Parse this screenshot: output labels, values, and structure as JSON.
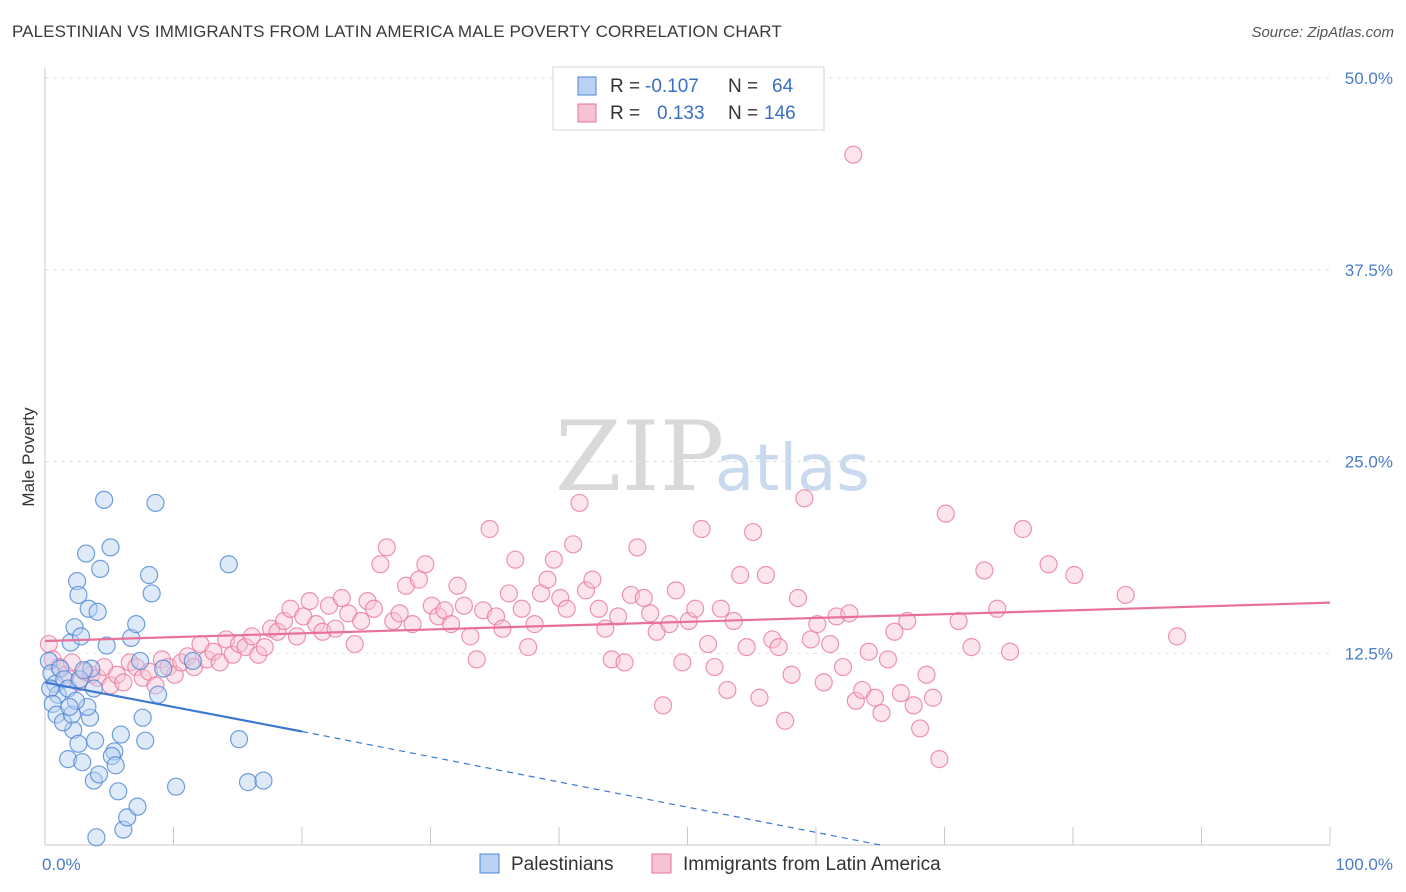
{
  "title": "PALESTINIAN VS IMMIGRANTS FROM LATIN AMERICA MALE POVERTY CORRELATION CHART",
  "source": "Source: ZipAtlas.com",
  "watermark": {
    "zip": "ZIP",
    "atlas": "atlas"
  },
  "colors": {
    "blue": "#4f86d4",
    "blue_fill": "#b9d1f2",
    "pink": "#e8719b",
    "pink_fill": "#f6c3d5",
    "tick": "#4a7cc8",
    "grid": "#e2e2e2"
  },
  "legend": {
    "rows": [
      {
        "r_label": "R =",
        "r_value": "-0.107",
        "n_label": "N =",
        "n_value": "64"
      },
      {
        "r_label": "R =",
        "r_value": "0.133",
        "n_label": "N =",
        "n_value": "146"
      }
    ]
  },
  "chart_data": {
    "type": "scatter",
    "xlabel": "",
    "ylabel": "Male Poverty",
    "xlim": [
      0,
      100
    ],
    "ylim": [
      0,
      50
    ],
    "x_tick_labels": [
      "0.0%",
      "100.0%"
    ],
    "y_ticks": [
      12.5,
      25.0,
      37.5,
      50.0
    ],
    "y_tick_labels": [
      "12.5%",
      "25.0%",
      "37.5%",
      "50.0%"
    ],
    "grid": true,
    "legend_position": "bottom-center",
    "series": [
      {
        "name": "Palestinians",
        "color": "#4f86d4",
        "trend": {
          "x": [
            0,
            20
          ],
          "y": [
            10.6,
            7.4
          ],
          "dashed_to": [
            65,
            0
          ]
        },
        "points": [
          [
            0.3,
            12
          ],
          [
            0.5,
            11.2
          ],
          [
            0.8,
            10.5
          ],
          [
            1,
            9.8
          ],
          [
            0.4,
            10.2
          ],
          [
            1.2,
            11.5
          ],
          [
            0.6,
            9.2
          ],
          [
            1.5,
            10.8
          ],
          [
            0.9,
            8.5
          ],
          [
            1.8,
            10.2
          ],
          [
            2,
            13.2
          ],
          [
            2.3,
            14.2
          ],
          [
            2.5,
            17.2
          ],
          [
            2.6,
            16.3
          ],
          [
            2.8,
            13.6
          ],
          [
            3.2,
            19
          ],
          [
            3.4,
            15.4
          ],
          [
            3.6,
            11.5
          ],
          [
            3.8,
            10.2
          ],
          [
            3.5,
            8.3
          ],
          [
            3.9,
            6.8
          ],
          [
            4.1,
            15.2
          ],
          [
            4.3,
            18
          ],
          [
            4.6,
            22.5
          ],
          [
            3.8,
            4.2
          ],
          [
            4.2,
            4.6
          ],
          [
            4.8,
            13
          ],
          [
            5.1,
            19.4
          ],
          [
            5.4,
            6.1
          ],
          [
            5.7,
            3.5
          ],
          [
            6.1,
            1
          ],
          [
            6.4,
            1.8
          ],
          [
            5.9,
            7.2
          ],
          [
            5.2,
            5.8
          ],
          [
            5.5,
            5.2
          ],
          [
            2.2,
            7.5
          ],
          [
            2.6,
            6.6
          ],
          [
            1.8,
            5.6
          ],
          [
            1.4,
            8
          ],
          [
            2.1,
            8.5
          ],
          [
            2.9,
            5.4
          ],
          [
            3.3,
            9.0
          ],
          [
            2.7,
            10.8
          ],
          [
            3,
            11.4
          ],
          [
            2.4,
            9.4
          ],
          [
            1.9,
            9.0
          ],
          [
            6.7,
            13.5
          ],
          [
            7.1,
            14.4
          ],
          [
            7.4,
            12
          ],
          [
            7.6,
            8.3
          ],
          [
            7.8,
            6.8
          ],
          [
            8.1,
            17.6
          ],
          [
            8.3,
            16.4
          ],
          [
            8.6,
            22.3
          ],
          [
            8.8,
            9.8
          ],
          [
            9.2,
            11.5
          ],
          [
            10.2,
            3.8
          ],
          [
            11.5,
            12
          ],
          [
            14.3,
            18.3
          ],
          [
            15.1,
            6.9
          ],
          [
            15.8,
            4.1
          ],
          [
            17.0,
            4.2
          ],
          [
            7.2,
            2.5
          ],
          [
            4.0,
            0.5
          ]
        ]
      },
      {
        "name": "Immigrants from Latin America",
        "color": "#e8719b",
        "trend": {
          "x": [
            0,
            100
          ],
          "y": [
            13.3,
            15.8
          ]
        },
        "points": [
          [
            0.3,
            13.1
          ],
          [
            0.6,
            12.1
          ],
          [
            1.1,
            11.6
          ],
          [
            1.6,
            11.1
          ],
          [
            2.1,
            11.9
          ],
          [
            2.6,
            10.6
          ],
          [
            3.1,
            11.3
          ],
          [
            3.6,
            11.1
          ],
          [
            4.1,
            10.9
          ],
          [
            4.6,
            11.6
          ],
          [
            5.1,
            10.4
          ],
          [
            5.6,
            11.1
          ],
          [
            6.1,
            10.6
          ],
          [
            6.6,
            11.9
          ],
          [
            7.1,
            11.6
          ],
          [
            7.6,
            10.9
          ],
          [
            8.1,
            11.3
          ],
          [
            8.6,
            10.4
          ],
          [
            9.1,
            12.1
          ],
          [
            9.6,
            11.6
          ],
          [
            10.1,
            11.1
          ],
          [
            10.6,
            11.9
          ],
          [
            11.1,
            12.3
          ],
          [
            11.6,
            11.6
          ],
          [
            12.1,
            13.1
          ],
          [
            12.6,
            12.1
          ],
          [
            13.1,
            12.6
          ],
          [
            13.6,
            11.9
          ],
          [
            14.1,
            13.4
          ],
          [
            14.6,
            12.4
          ],
          [
            15.1,
            13.1
          ],
          [
            15.6,
            12.9
          ],
          [
            16.1,
            13.6
          ],
          [
            16.6,
            12.4
          ],
          [
            17.1,
            12.9
          ],
          [
            17.6,
            14.1
          ],
          [
            18.1,
            13.9
          ],
          [
            18.6,
            14.6
          ],
          [
            19.1,
            15.4
          ],
          [
            19.6,
            13.6
          ],
          [
            20.1,
            14.9
          ],
          [
            20.6,
            15.9
          ],
          [
            21.1,
            14.4
          ],
          [
            21.6,
            13.9
          ],
          [
            22.1,
            15.6
          ],
          [
            22.6,
            14.1
          ],
          [
            23.1,
            16.1
          ],
          [
            23.6,
            15.1
          ],
          [
            24.1,
            13.1
          ],
          [
            24.6,
            14.6
          ],
          [
            25.1,
            15.9
          ],
          [
            25.6,
            15.4
          ],
          [
            26.1,
            18.3
          ],
          [
            26.6,
            19.4
          ],
          [
            27.1,
            14.6
          ],
          [
            27.6,
            15.1
          ],
          [
            28.1,
            16.9
          ],
          [
            28.6,
            14.4
          ],
          [
            29.1,
            17.3
          ],
          [
            29.6,
            18.3
          ],
          [
            30.1,
            15.6
          ],
          [
            30.6,
            14.9
          ],
          [
            31.1,
            15.3
          ],
          [
            31.6,
            14.4
          ],
          [
            32.1,
            16.9
          ],
          [
            32.6,
            15.6
          ],
          [
            33.1,
            13.6
          ],
          [
            33.6,
            12.1
          ],
          [
            34.1,
            15.3
          ],
          [
            34.6,
            20.6
          ],
          [
            35.1,
            14.9
          ],
          [
            35.6,
            14.1
          ],
          [
            36.1,
            16.4
          ],
          [
            36.6,
            18.6
          ],
          [
            37.1,
            15.4
          ],
          [
            37.6,
            12.9
          ],
          [
            38.1,
            14.4
          ],
          [
            38.6,
            16.4
          ],
          [
            39.1,
            17.3
          ],
          [
            39.6,
            18.6
          ],
          [
            40.1,
            16.1
          ],
          [
            40.6,
            15.4
          ],
          [
            41.1,
            19.6
          ],
          [
            41.6,
            22.3
          ],
          [
            42.1,
            16.6
          ],
          [
            42.6,
            17.3
          ],
          [
            43.1,
            15.4
          ],
          [
            43.6,
            14.1
          ],
          [
            44.1,
            12.1
          ],
          [
            44.6,
            14.9
          ],
          [
            45.1,
            11.9
          ],
          [
            45.6,
            16.3
          ],
          [
            46.1,
            19.4
          ],
          [
            46.6,
            16.1
          ],
          [
            47.1,
            15.1
          ],
          [
            47.6,
            13.9
          ],
          [
            48.1,
            9.1
          ],
          [
            48.6,
            14.4
          ],
          [
            49.1,
            16.6
          ],
          [
            49.6,
            11.9
          ],
          [
            50.1,
            14.6
          ],
          [
            50.6,
            15.4
          ],
          [
            51.1,
            20.6
          ],
          [
            51.6,
            13.1
          ],
          [
            52.1,
            11.6
          ],
          [
            52.6,
            15.4
          ],
          [
            53.1,
            10.1
          ],
          [
            53.6,
            14.6
          ],
          [
            54.1,
            17.6
          ],
          [
            54.6,
            12.9
          ],
          [
            55.1,
            20.4
          ],
          [
            55.6,
            9.6
          ],
          [
            56.1,
            17.6
          ],
          [
            56.6,
            13.4
          ],
          [
            57.1,
            12.9
          ],
          [
            57.6,
            8.1
          ],
          [
            58.1,
            11.1
          ],
          [
            58.6,
            16.1
          ],
          [
            59.1,
            22.6
          ],
          [
            59.6,
            13.4
          ],
          [
            60.1,
            14.4
          ],
          [
            60.6,
            10.6
          ],
          [
            61.1,
            13.1
          ],
          [
            61.6,
            14.9
          ],
          [
            62.1,
            11.6
          ],
          [
            62.6,
            15.1
          ],
          [
            63.1,
            9.4
          ],
          [
            63.6,
            10.1
          ],
          [
            64.1,
            12.6
          ],
          [
            64.6,
            9.6
          ],
          [
            65.1,
            8.6
          ],
          [
            65.6,
            12.1
          ],
          [
            66.1,
            13.9
          ],
          [
            66.6,
            9.9
          ],
          [
            67.1,
            14.6
          ],
          [
            67.6,
            9.1
          ],
          [
            68.1,
            7.6
          ],
          [
            68.6,
            11.1
          ],
          [
            69.1,
            9.6
          ],
          [
            69.6,
            5.6
          ],
          [
            70.1,
            21.6
          ],
          [
            71.1,
            14.6
          ],
          [
            72.1,
            12.9
          ],
          [
            73.1,
            17.9
          ],
          [
            74.1,
            15.4
          ],
          [
            75.1,
            12.6
          ],
          [
            76.1,
            20.6
          ],
          [
            78.1,
            18.3
          ],
          [
            80.1,
            17.6
          ],
          [
            84.1,
            16.3
          ],
          [
            88.1,
            13.6
          ],
          [
            62.9,
            45.0
          ]
        ]
      }
    ]
  },
  "bottom_legend": [
    {
      "label": "Palestinians"
    },
    {
      "label": "Immigrants from Latin America"
    }
  ]
}
